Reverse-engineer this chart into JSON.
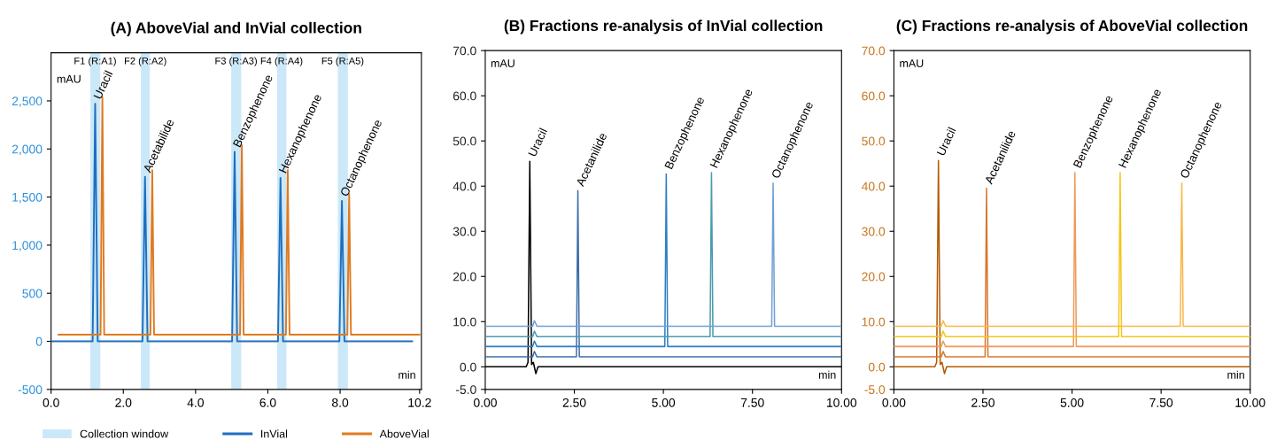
{
  "chart_data": [
    {
      "type": "line",
      "title": "(A) AboveVial and InVial collection",
      "xlabel": "min",
      "ylabel": "mAU",
      "xlim": [
        0,
        10.25
      ],
      "ylim": [
        -500,
        3000
      ],
      "xticks": [
        {
          "value": 0,
          "label": "0.0"
        },
        {
          "value": 2,
          "label": "2.0"
        },
        {
          "value": 4,
          "label": "4.0"
        },
        {
          "value": 6,
          "label": "6.0"
        },
        {
          "value": 8,
          "label": "8.0"
        },
        10.2
      ],
      "yticks": [
        {
          "value": -500,
          "label": "-500"
        },
        0,
        500,
        {
          "value": 1000,
          "label": "1,000"
        },
        {
          "value": 1500,
          "label": "1,500"
        },
        {
          "value": 2000,
          "label": "2,000"
        },
        {
          "value": 2500,
          "label": "2,500"
        }
      ],
      "legend": "bottom",
      "grid": false,
      "bands": [
        {
          "axis": "x",
          "from": 1.1,
          "to": 1.35,
          "label": "Collection window",
          "color": "#bfe3f7"
        },
        {
          "axis": "x",
          "from": 2.5,
          "to": 2.72,
          "color": "#bfe3f7"
        },
        {
          "axis": "x",
          "from": 5.0,
          "to": 5.25,
          "color": "#bfe3f7"
        },
        {
          "axis": "x",
          "from": 6.27,
          "to": 6.5,
          "color": "#bfe3f7"
        },
        {
          "axis": "x",
          "from": 7.95,
          "to": 8.2,
          "color": "#bfe3f7"
        }
      ],
      "series": [
        {
          "name": "InVial",
          "color": "#1f6fbf",
          "x": [
            0,
            1.15,
            1.22,
            1.29,
            2.53,
            2.6,
            2.67,
            5.01,
            5.08,
            5.15,
            6.28,
            6.35,
            6.42,
            7.98,
            8.05,
            8.12,
            10.0
          ],
          "values": [
            0,
            0,
            2470,
            0,
            0,
            1710,
            0,
            0,
            1970,
            0,
            0,
            1700,
            0,
            0,
            1460,
            0,
            0
          ]
        },
        {
          "name": "AboveVial",
          "color": "#e07a1f",
          "x": [
            0.2,
            1.37,
            1.42,
            1.47,
            2.75,
            2.8,
            2.85,
            5.23,
            5.28,
            5.33,
            6.5,
            6.55,
            6.6,
            8.2,
            8.25,
            8.3,
            10.2
          ],
          "values": [
            70,
            70,
            2540,
            70,
            70,
            1780,
            70,
            70,
            2040,
            70,
            70,
            1780,
            70,
            70,
            1530,
            70,
            70
          ]
        }
      ],
      "annotations": [
        {
          "text": "F1 (R:A1)",
          "x": 1.22,
          "y": 2860
        },
        {
          "text": "F2 (R:A2)",
          "x": 2.61,
          "y": 2860
        },
        {
          "text": "F3 (R:A3)",
          "x": 5.12,
          "y": 2860
        },
        {
          "text": "F4 (R:A4)",
          "x": 6.38,
          "y": 2860
        },
        {
          "text": "F5 (R:A5)",
          "x": 8.07,
          "y": 2860
        },
        {
          "text": "Uracil",
          "x": 1.22,
          "y": 2470
        },
        {
          "text": "Acetabilide",
          "x": 2.6,
          "y": 1710
        },
        {
          "text": "Benzophenone",
          "x": 5.08,
          "y": 1970
        },
        {
          "text": "Hexanophenone",
          "x": 6.35,
          "y": 1700
        },
        {
          "text": "Octanophenone",
          "x": 8.05,
          "y": 1460
        }
      ]
    },
    {
      "type": "line",
      "title": "(B) Fractions re-analysis of InVial collection",
      "xlabel": "min",
      "ylabel": "mAU",
      "xlim": [
        0,
        10
      ],
      "ylim": [
        -5,
        70
      ],
      "xticks": [
        {
          "value": 0,
          "label": "0.00"
        },
        {
          "value": 2.5,
          "label": "2.50"
        },
        {
          "value": 5,
          "label": "5.00"
        },
        {
          "value": 7.5,
          "label": "7.50"
        },
        {
          "value": 10,
          "label": "10.00"
        }
      ],
      "yticks": [
        {
          "value": -5,
          "label": "-5.0"
        },
        {
          "value": 0,
          "label": "0.0"
        },
        {
          "value": 10,
          "label": "10.0"
        },
        {
          "value": 20,
          "label": "20.0"
        },
        {
          "value": 30,
          "label": "30.0"
        },
        {
          "value": 40,
          "label": "40.0"
        },
        {
          "value": 50,
          "label": "50.0"
        },
        {
          "value": 60,
          "label": "60.0"
        },
        {
          "value": 70,
          "label": "70.0"
        }
      ],
      "legend": false,
      "grid": false,
      "series": [
        {
          "color": "#000000",
          "x": [
            0,
            1.15,
            1.2,
            1.25,
            1.3,
            1.35,
            1.42,
            1.48,
            10
          ],
          "values": [
            0,
            0,
            1,
            45.5,
            0.5,
            1,
            -1.5,
            0,
            0
          ]
        },
        {
          "color": "#3d6ea8",
          "x": [
            0,
            1.33,
            1.38,
            1.45,
            2.56,
            2.6,
            2.64,
            10
          ],
          "values": [
            2.2,
            2.2,
            3.4,
            2.2,
            2.2,
            39,
            2.2,
            2.2
          ]
        },
        {
          "color": "#2f7fc1",
          "x": [
            0,
            1.33,
            1.38,
            1.45,
            5.04,
            5.08,
            5.12,
            10
          ],
          "values": [
            4.5,
            4.5,
            5.7,
            4.5,
            4.5,
            42.7,
            4.5,
            4.5
          ]
        },
        {
          "color": "#4a9bb0",
          "x": [
            0,
            1.33,
            1.38,
            1.45,
            6.31,
            6.35,
            6.39,
            10
          ],
          "values": [
            6.7,
            6.7,
            7.9,
            6.7,
            6.7,
            43,
            6.7,
            6.7
          ]
        },
        {
          "color": "#6f9fd8",
          "x": [
            0,
            1.33,
            1.38,
            1.45,
            8.04,
            8.08,
            8.12,
            10
          ],
          "values": [
            9,
            9,
            10.2,
            9,
            9,
            40.7,
            9,
            9
          ]
        }
      ],
      "annotations": [
        {
          "text": "Uracil",
          "x": 1.25,
          "y": 45.5
        },
        {
          "text": "Acetanilide",
          "x": 2.6,
          "y": 39
        },
        {
          "text": "Benzophenone",
          "x": 5.08,
          "y": 42.7
        },
        {
          "text": "Hexanophenone",
          "x": 6.35,
          "y": 43
        },
        {
          "text": "Octanophenone",
          "x": 8.08,
          "y": 40.7
        }
      ]
    },
    {
      "type": "line",
      "title": "(C) Fractions re-analysis of AboveVial collection",
      "xlabel": "min",
      "ylabel": "mAU",
      "xlim": [
        0,
        10
      ],
      "ylim": [
        -5,
        70
      ],
      "xticks": [
        {
          "value": 0,
          "label": "0.00"
        },
        {
          "value": 2.5,
          "label": "2.50"
        },
        {
          "value": 5,
          "label": "5.00"
        },
        {
          "value": 7.5,
          "label": "7.50"
        },
        {
          "value": 10,
          "label": "10.00"
        }
      ],
      "yticks": [
        {
          "value": -5,
          "label": "-5.0"
        },
        {
          "value": 0,
          "label": "0.0"
        },
        {
          "value": 10,
          "label": "10.0"
        },
        {
          "value": 20,
          "label": "20.0"
        },
        {
          "value": 30,
          "label": "30.0"
        },
        {
          "value": 40,
          "label": "40.0"
        },
        {
          "value": 50,
          "label": "50.0"
        },
        {
          "value": 60,
          "label": "60.0"
        },
        {
          "value": 70,
          "label": "70.0"
        }
      ],
      "legend": false,
      "grid": false,
      "series": [
        {
          "color": "#b35a00",
          "x": [
            0,
            1.15,
            1.2,
            1.25,
            1.3,
            1.35,
            1.42,
            1.48,
            10
          ],
          "values": [
            0,
            0,
            1,
            45.7,
            0.5,
            1,
            -1.5,
            0,
            0
          ]
        },
        {
          "color": "#d9762b",
          "x": [
            0,
            1.33,
            1.38,
            1.45,
            2.56,
            2.6,
            2.64,
            10
          ],
          "values": [
            2.2,
            2.2,
            3.4,
            2.2,
            2.2,
            39.5,
            2.2,
            2.2
          ]
        },
        {
          "color": "#ef9a5a",
          "x": [
            0,
            1.33,
            1.38,
            1.45,
            5.04,
            5.08,
            5.12,
            10
          ],
          "values": [
            4.5,
            4.5,
            5.7,
            4.5,
            4.5,
            43,
            4.5,
            4.5
          ]
        },
        {
          "color": "#f5c518",
          "x": [
            0,
            1.33,
            1.38,
            1.45,
            6.31,
            6.35,
            6.39,
            10
          ],
          "values": [
            6.7,
            6.7,
            7.9,
            6.7,
            6.7,
            43,
            6.7,
            6.7
          ]
        },
        {
          "color": "#f7b84a",
          "x": [
            0,
            1.33,
            1.38,
            1.45,
            8.04,
            8.08,
            8.12,
            10
          ],
          "values": [
            9,
            9,
            10.2,
            9,
            9,
            40.7,
            9,
            9
          ]
        }
      ],
      "annotations": [
        {
          "text": "Uracil",
          "x": 1.25,
          "y": 45.7
        },
        {
          "text": "Acetanilide",
          "x": 2.6,
          "y": 39.5
        },
        {
          "text": "Benzophenone",
          "x": 5.08,
          "y": 43
        },
        {
          "text": "Hexanophenone",
          "x": 6.35,
          "y": 43
        },
        {
          "text": "Octanophenone",
          "x": 8.08,
          "y": 40.7
        }
      ]
    }
  ]
}
